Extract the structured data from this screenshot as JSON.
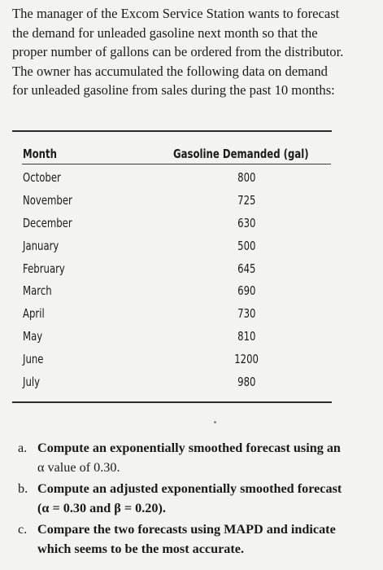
{
  "intro_lines": [
    "The manager of the Excom Service Station wants to forecast",
    "the demand for unleaded gasoline next month so that the",
    "proper number of gallons can be ordered from the distributor.",
    "The owner has accumulated the following data on demand",
    "for unleaded gasoline from sales during the past 10 months:"
  ],
  "table": {
    "headers": {
      "month": "Month",
      "demand": "Gasoline Demanded (gal)"
    },
    "rows": [
      {
        "month": "October",
        "value": "800"
      },
      {
        "month": "November",
        "value": "725"
      },
      {
        "month": "December",
        "value": "630"
      },
      {
        "month": "January",
        "value": "500"
      },
      {
        "month": "February",
        "value": "645"
      },
      {
        "month": "March",
        "value": "690"
      },
      {
        "month": "April",
        "value": "730"
      },
      {
        "month": "May",
        "value": "810"
      },
      {
        "month": "June",
        "value": "1200"
      },
      {
        "month": "July",
        "value": "980"
      }
    ]
  },
  "questions": [
    {
      "letter": "a.",
      "line1": "Compute an exponentially smoothed forecast using an",
      "line2": "α value of 0.30."
    },
    {
      "letter": "b.",
      "line1": "Compute an adjusted exponentially smoothed forecast",
      "line2": "(α = 0.30 and β = 0.20)."
    },
    {
      "letter": "c.",
      "line1": "Compare the two forecasts using MAPD and indicate",
      "line2": "which seems to be the most accurate."
    }
  ]
}
